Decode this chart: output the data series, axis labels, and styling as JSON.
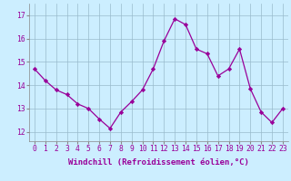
{
  "x": [
    0,
    1,
    2,
    3,
    4,
    5,
    6,
    7,
    8,
    9,
    10,
    11,
    12,
    13,
    14,
    15,
    16,
    17,
    18,
    19,
    20,
    21,
    22,
    23
  ],
  "y": [
    14.7,
    14.2,
    13.8,
    13.6,
    13.2,
    13.0,
    12.55,
    12.15,
    12.85,
    13.3,
    13.8,
    14.7,
    15.9,
    16.85,
    16.6,
    15.55,
    15.35,
    14.4,
    14.7,
    15.55,
    13.85,
    12.85,
    12.4,
    13.0
  ],
  "line_color": "#990099",
  "marker": "D",
  "marker_size": 2.2,
  "bg_color": "#cceeff",
  "grid_color": "#99bbcc",
  "xlabel": "Windchill (Refroidissement éolien,°C)",
  "xlabel_fontsize": 6.5,
  "yticks": [
    12,
    13,
    14,
    15,
    16,
    17
  ],
  "ylim": [
    11.6,
    17.5
  ],
  "xlim": [
    -0.5,
    23.5
  ],
  "xtick_labels": [
    "0",
    "1",
    "2",
    "3",
    "4",
    "5",
    "6",
    "7",
    "8",
    "9",
    "10",
    "11",
    "12",
    "13",
    "14",
    "15",
    "16",
    "17",
    "18",
    "19",
    "20",
    "21",
    "22",
    "23"
  ],
  "tick_fontsize": 5.8,
  "ylabel_color": "#990099",
  "spine_color": "#888888"
}
